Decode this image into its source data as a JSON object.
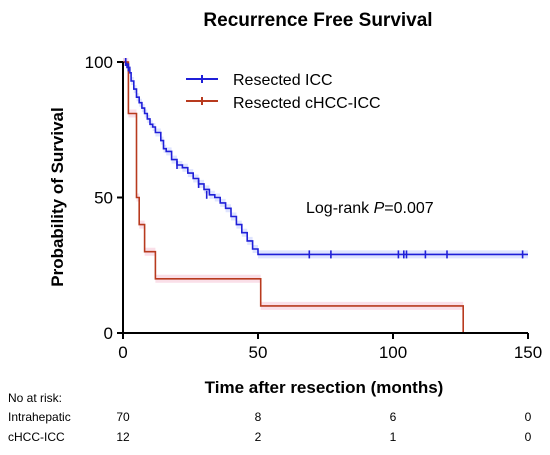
{
  "chart_data": {
    "type": "line",
    "title": "Recurrence Free Survival",
    "xlabel": "Time after resection (months)",
    "ylabel": "Probability of Survival",
    "xlim": [
      0,
      150
    ],
    "ylim": [
      0,
      100
    ],
    "x_ticks": [
      "0",
      "50",
      "100",
      "150"
    ],
    "y_ticks": [
      "0",
      "50",
      "100"
    ],
    "grid": false,
    "legend_position": "top-right",
    "annotation": {
      "prefix": "Log-rank ",
      "italic": "P",
      "suffix": "=0.007"
    },
    "series": [
      {
        "name": "Resected ICC",
        "color": "#1f1fd8",
        "band_color": "#c9d2ff",
        "x": [
          0,
          1.5,
          2.5,
          3,
          4,
          5,
          6,
          7,
          8,
          9,
          10,
          11,
          12,
          14,
          15,
          16,
          18,
          20,
          22,
          24,
          26,
          28,
          30,
          32,
          34,
          36,
          38,
          40,
          42,
          44,
          46,
          48,
          50,
          150
        ],
        "y": [
          100,
          98,
          96,
          93,
          90,
          87,
          85,
          83,
          81,
          79,
          77,
          76,
          74,
          71,
          68,
          67,
          64,
          62,
          61,
          59,
          57,
          55,
          53,
          51,
          50,
          48,
          46,
          43,
          40,
          37,
          34,
          31,
          29,
          29
        ],
        "censor_x": [
          1,
          2,
          20,
          28,
          31,
          69,
          77,
          102,
          104,
          105,
          112,
          120,
          148
        ],
        "censor_y": [
          100,
          98,
          62,
          55,
          51,
          29,
          29,
          29,
          29,
          29,
          29,
          29,
          29
        ]
      },
      {
        "name": "Resected cHCC-ICC",
        "color": "#b83a1e",
        "band_color": "#f6c9d9",
        "x": [
          0,
          2,
          5,
          6,
          8,
          12,
          51,
          126
        ],
        "y": [
          100,
          81,
          50,
          40,
          30,
          20,
          10,
          0
        ],
        "censor_x": [],
        "censor_y": []
      }
    ]
  },
  "risk_table": {
    "header": "No at risk:",
    "rows": [
      {
        "label": "Intrahepatic",
        "values": [
          "70",
          "8",
          "6",
          "0"
        ]
      },
      {
        "label": "cHCC-ICC",
        "values": [
          "12",
          "2",
          "1",
          "0"
        ]
      }
    ]
  }
}
